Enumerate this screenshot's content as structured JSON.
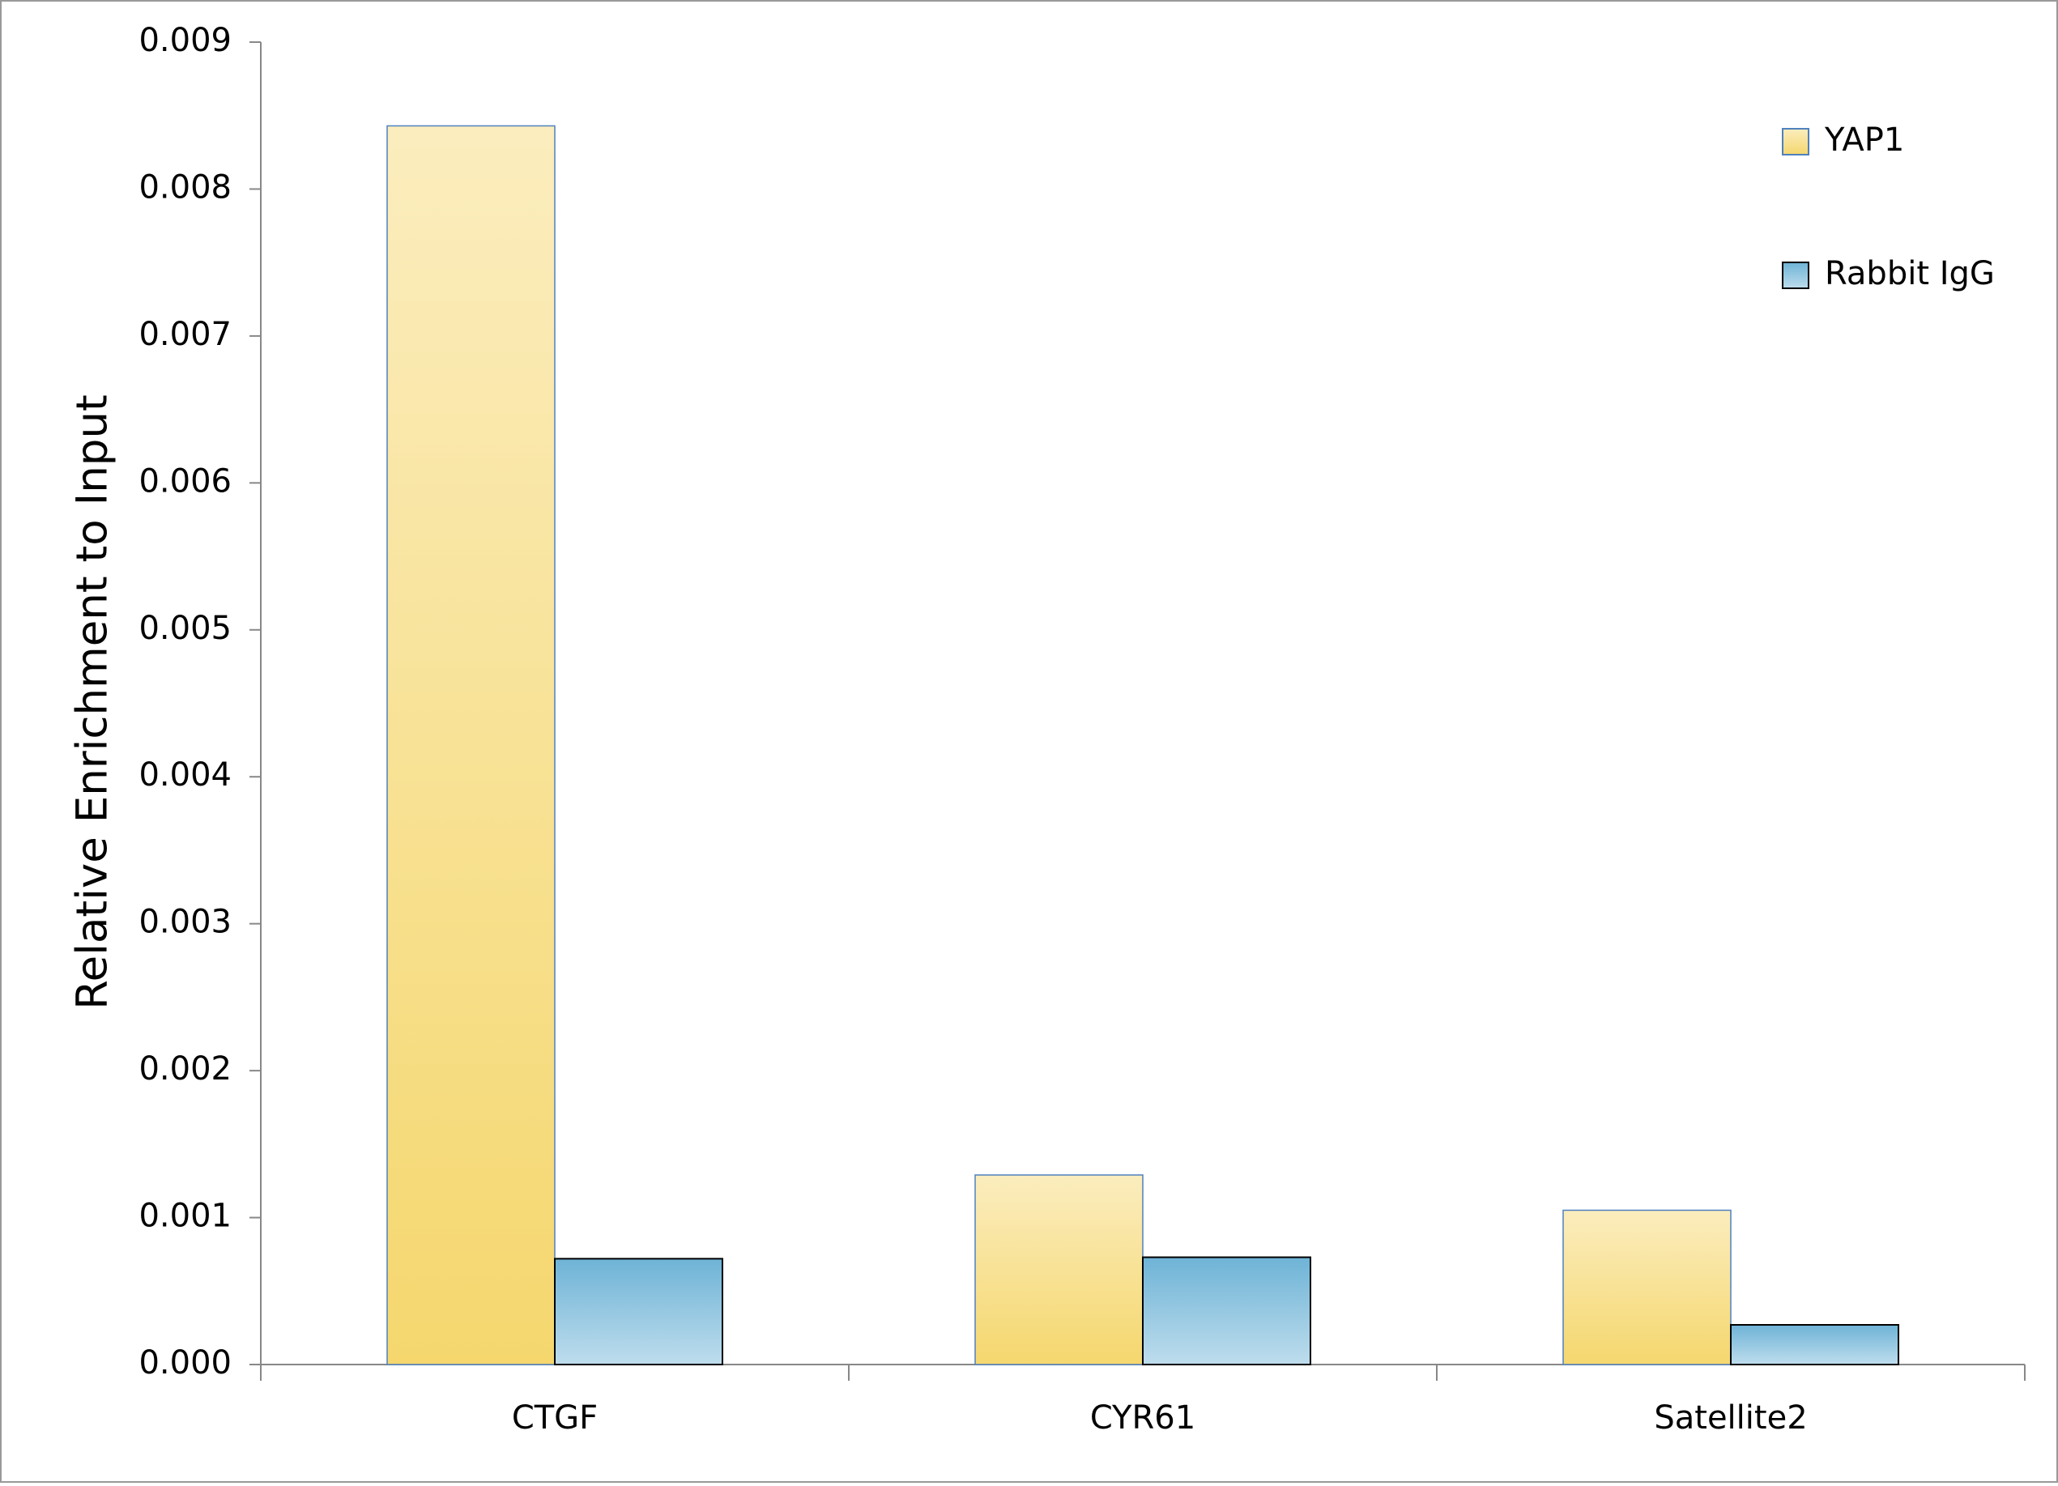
{
  "chart_data": {
    "type": "bar",
    "y_label": "Relative Enrichment to Input",
    "categories": [
      "CTGF",
      "CYR61",
      "Satellite2"
    ],
    "series": [
      {
        "name": "YAP1",
        "color": "#f5d76e",
        "values": [
          0.00843,
          0.00129,
          0.00105
        ]
      },
      {
        "name": "Rabbit IgG",
        "color": "#6eb3d6",
        "values": [
          0.00072,
          0.00073,
          0.00027
        ]
      }
    ],
    "ylim": [
      0,
      0.009
    ],
    "yticks": [
      {
        "value": 0,
        "label": "0.000"
      },
      0.001,
      0.002,
      0.003,
      0.004,
      0.005,
      0.006,
      0.007,
      0.008,
      0.009
    ],
    "legend": "top-right"
  }
}
